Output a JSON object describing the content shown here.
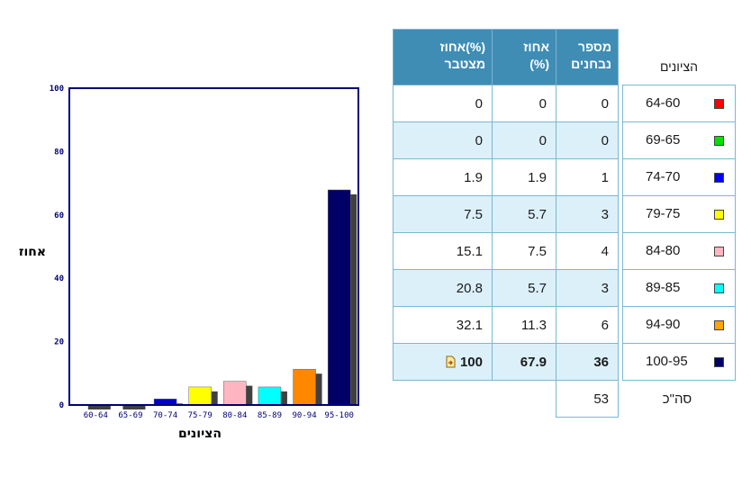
{
  "chart_data": {
    "type": "bar",
    "categories": [
      "60-64",
      "65-69",
      "70-74",
      "75-79",
      "80-84",
      "85-89",
      "90-94",
      "95-100"
    ],
    "values": [
      0,
      0,
      1.9,
      5.7,
      7.5,
      5.7,
      11.3,
      67.9
    ],
    "colors": [
      "#ff0000",
      "#00d000",
      "#0000cc",
      "#ffff00",
      "#ffb6c1",
      "#00ffff",
      "#ff8800",
      "#000066"
    ],
    "ylabel": "אחוז",
    "xlabel": "הציונים",
    "ylim": [
      0,
      100
    ],
    "yticks": [
      0,
      20,
      40,
      60,
      80,
      100
    ]
  },
  "table": {
    "headers": {
      "cumulative": [
        "אחוז(%)",
        "מצטבר"
      ],
      "percent": [
        "אחוז",
        "(%)"
      ],
      "count": [
        "מספר",
        "נבחנים"
      ],
      "grades": "הציונים"
    },
    "rows": [
      {
        "range": "64-60",
        "count": "0",
        "percent": "0",
        "cumulative": "0",
        "color": "#ff0000"
      },
      {
        "range": "69-65",
        "count": "0",
        "percent": "0",
        "cumulative": "0",
        "color": "#00e000"
      },
      {
        "range": "74-70",
        "count": "1",
        "percent": "1.9",
        "cumulative": "1.9",
        "color": "#0000ff"
      },
      {
        "range": "79-75",
        "count": "3",
        "percent": "5.7",
        "cumulative": "7.5",
        "color": "#ffff00"
      },
      {
        "range": "84-80",
        "count": "4",
        "percent": "7.5",
        "cumulative": "15.1",
        "color": "#ffb6c1"
      },
      {
        "range": "89-85",
        "count": "3",
        "percent": "5.7",
        "cumulative": "20.8",
        "color": "#00ffff"
      },
      {
        "range": "94-90",
        "count": "6",
        "percent": "11.3",
        "cumulative": "32.1",
        "color": "#ffa500"
      },
      {
        "range": "100-95",
        "count": "36",
        "percent": "67.9",
        "cumulative": "100",
        "color": "#000066"
      }
    ],
    "total_label": "סה\"כ",
    "total_count": "53"
  },
  "icons": {
    "export": "document-arrow-icon"
  }
}
